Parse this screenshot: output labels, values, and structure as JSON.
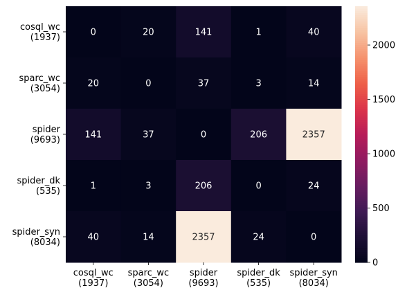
{
  "chart_data": {
    "type": "heatmap",
    "x_categories": [
      [
        "cosql_wc",
        "(1937)"
      ],
      [
        "sparc_wc",
        "(3054)"
      ],
      [
        "spider",
        "(9693)"
      ],
      [
        "spider_dk",
        "(535)"
      ],
      [
        "spider_syn",
        "(8034)"
      ]
    ],
    "y_categories": [
      [
        "cosql_wc",
        "(1937)"
      ],
      [
        "sparc_wc",
        "(3054)"
      ],
      [
        "spider",
        "(9693)"
      ],
      [
        "spider_dk",
        "(535)"
      ],
      [
        "spider_syn",
        "(8034)"
      ]
    ],
    "values": [
      [
        0,
        20,
        141,
        1,
        40
      ],
      [
        20,
        0,
        37,
        3,
        14
      ],
      [
        141,
        37,
        0,
        206,
        2357
      ],
      [
        1,
        3,
        206,
        0,
        24
      ],
      [
        40,
        14,
        2357,
        24,
        0
      ]
    ],
    "colorbar": {
      "min": 0,
      "max": 2357,
      "ticks": [
        "0",
        "500",
        "1000",
        "1500",
        "2000"
      ],
      "tick_values": [
        0,
        500,
        1000,
        1500,
        2000
      ],
      "colormap": "rocket"
    },
    "annotations": true,
    "title": "",
    "xlabel": "",
    "ylabel": "",
    "grid": false
  }
}
